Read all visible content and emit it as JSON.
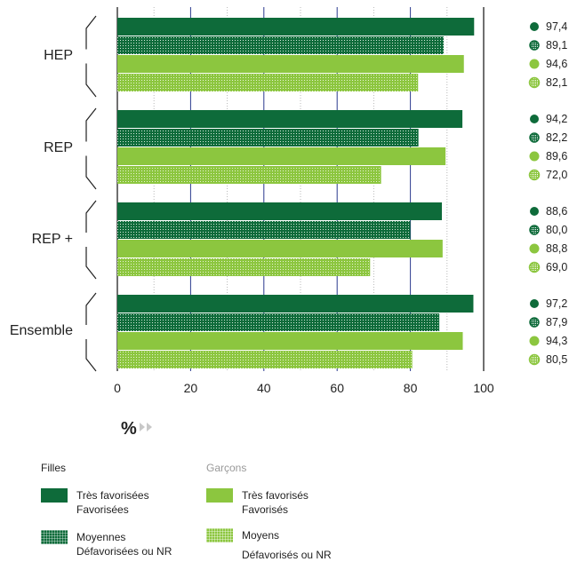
{
  "chart_data": {
    "type": "bar",
    "orientation": "horizontal",
    "categories": [
      "HEP",
      "REP",
      "REP +",
      "Ensemble"
    ],
    "series": [
      {
        "name": "Filles très favorisées / favorisées",
        "values": [
          97.4,
          94.2,
          88.6,
          97.2
        ],
        "value_labels": [
          "97,4",
          "94,2",
          "88,6",
          "97,2"
        ],
        "color": "#0e6b3a",
        "pattern": "solid"
      },
      {
        "name": "Filles moyennes / défavorisées ou NR",
        "values": [
          89.1,
          82.2,
          80.0,
          87.9
        ],
        "value_labels": [
          "89,1",
          "82,2",
          "80,0",
          "87,9"
        ],
        "color": "#0e6b3a",
        "pattern": "grid"
      },
      {
        "name": "Garçons très favorisés / favorisés",
        "values": [
          94.6,
          89.6,
          88.8,
          94.3
        ],
        "value_labels": [
          "94,6",
          "89,6",
          "88,8",
          "94,3"
        ],
        "color": "#8cc63f",
        "pattern": "solid"
      },
      {
        "name": "Garçons moyens / défavorisés ou NR",
        "values": [
          82.1,
          72.0,
          69.0,
          80.5
        ],
        "value_labels": [
          "82,1",
          "72,0",
          "69,0",
          "80,5"
        ],
        "color": "#8cc63f",
        "pattern": "grid"
      }
    ],
    "xlim": [
      0,
      100
    ],
    "xticks": [
      0,
      20,
      40,
      60,
      80,
      100
    ],
    "xlabel": "%",
    "grid": true
  },
  "legend": {
    "filles_heading": "Filles",
    "garcons_heading": "Garçons",
    "filles_items": [
      {
        "lines": [
          "Très favorisées",
          "Favorisées"
        ]
      },
      {
        "lines": [
          "Moyennes",
          "Défavorisées ou NR"
        ]
      }
    ],
    "garcons_items": [
      {
        "lines": [
          "Très favorisés",
          "Favorisés"
        ]
      },
      {
        "lines": [
          "Moyens",
          "Défavorisés ou NR"
        ]
      }
    ]
  },
  "colors": {
    "dark_green": "#0e6b3a",
    "light_green": "#8cc63f",
    "grid_blue": "#2b3a8f"
  }
}
